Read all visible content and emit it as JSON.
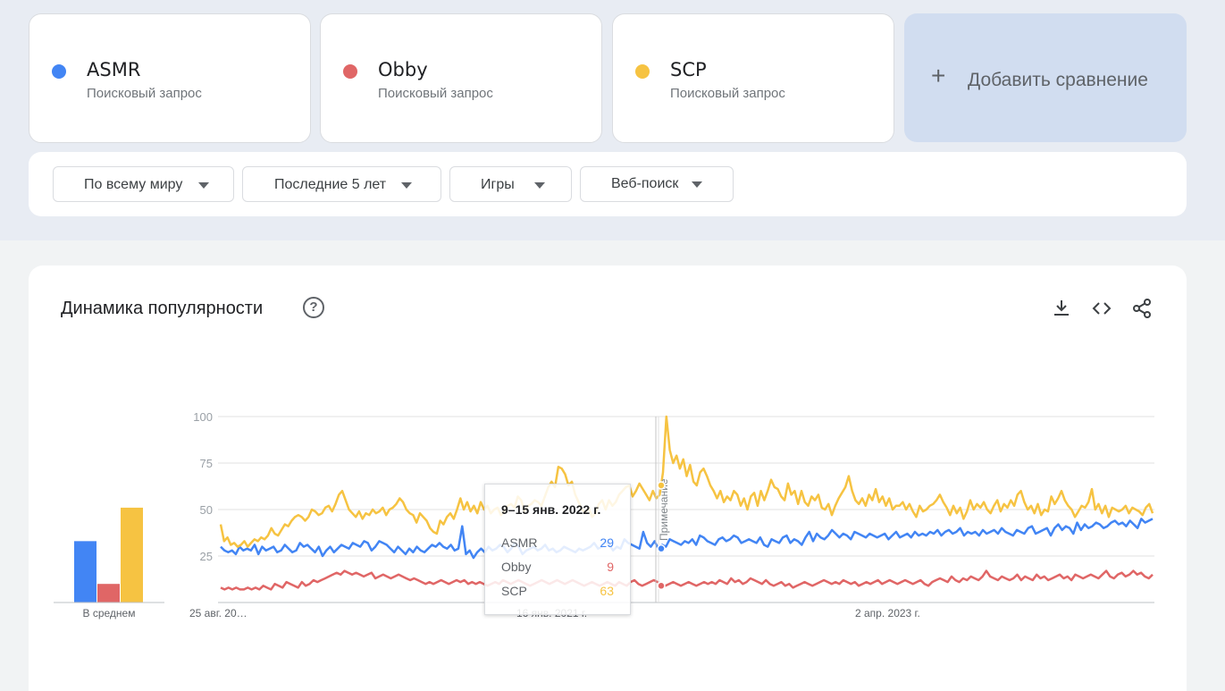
{
  "terms": [
    {
      "name": "ASMR",
      "subtitle": "Поисковый запрос",
      "color": "#4285f4"
    },
    {
      "name": "Obby",
      "subtitle": "Поисковый запрос",
      "color": "#e06666"
    },
    {
      "name": "SCP",
      "subtitle": "Поисковый запрос",
      "color": "#f6c342"
    }
  ],
  "add_compare": {
    "icon": "plus-icon",
    "label": "Добавить сравнение"
  },
  "filters": [
    {
      "label": "По всему миру",
      "icon": "caret-down-icon"
    },
    {
      "label": "Последние 5 лет",
      "icon": "caret-down-icon"
    },
    {
      "label": "Игры",
      "icon": "caret-down-icon"
    },
    {
      "label": "Веб-поиск",
      "icon": "caret-down-icon"
    }
  ],
  "panel": {
    "title": "Динамика популярности",
    "help_icon": "help-circle-icon",
    "help_glyph": "?",
    "actions": [
      "download-icon",
      "embed-code-icon",
      "share-icon"
    ]
  },
  "tooltip": {
    "title": "9–15 янв. 2022 г.",
    "rows": [
      {
        "name": "ASMR",
        "value": 29,
        "color": "#4285f4"
      },
      {
        "name": "Obby",
        "value": 9,
        "color": "#e06666"
      },
      {
        "name": "SCP",
        "value": 63,
        "color": "#f6c342"
      }
    ]
  },
  "chart_data": {
    "type": "line",
    "title": "",
    "ylim": [
      0,
      100
    ],
    "y_ticks": [
      25,
      50,
      75,
      100
    ],
    "x_tick_labels": [
      "25 авг. 20…",
      "16 янв. 2021 г.",
      "2 апр. 2023 г."
    ],
    "grid": true,
    "note_label": "Примечание",
    "series": [
      {
        "name": "ASMR",
        "color": "#4285f4",
        "values": [
          30,
          28,
          27,
          28,
          26,
          30,
          28,
          29,
          28,
          31,
          26,
          30,
          28,
          29,
          30,
          27,
          28,
          31,
          29,
          27,
          28,
          32,
          30,
          31,
          29,
          27,
          30,
          25,
          28,
          30,
          27,
          29,
          31,
          30,
          29,
          32,
          31,
          30,
          33,
          32,
          28,
          30,
          33,
          32,
          31,
          29,
          27,
          30,
          28,
          26,
          29,
          27,
          30,
          28,
          27,
          29,
          31,
          30,
          32,
          30,
          29,
          31,
          28,
          29,
          41,
          26,
          28,
          24,
          27,
          29,
          27,
          30,
          28,
          29,
          31,
          30,
          27,
          29,
          32,
          30,
          26,
          28,
          29,
          30,
          28,
          29,
          31,
          28,
          29,
          27,
          28,
          30,
          29,
          28,
          27,
          29,
          28,
          29,
          30,
          32,
          29,
          30,
          33,
          31,
          28,
          30,
          29,
          34,
          32,
          31,
          30,
          29,
          38,
          32,
          30,
          33,
          29,
          31,
          30,
          34,
          33,
          32,
          31,
          33,
          32,
          34,
          31,
          36,
          35,
          33,
          32,
          31,
          34,
          35,
          33,
          34,
          36,
          35,
          32,
          33,
          34,
          33,
          32,
          35,
          31,
          30,
          34,
          33,
          32,
          35,
          36,
          32,
          34,
          33,
          31,
          35,
          38,
          33,
          37,
          35,
          34,
          36,
          39,
          37,
          35,
          37,
          36,
          34,
          38,
          37,
          36,
          35,
          37,
          36,
          35,
          36,
          37,
          34,
          36,
          38,
          35,
          36,
          37,
          35,
          38,
          36,
          37,
          36,
          38,
          37,
          39,
          36,
          38,
          39,
          37,
          38,
          40,
          36,
          38,
          37,
          38,
          36,
          39,
          37,
          38,
          39,
          37,
          40,
          38,
          37,
          36,
          39,
          38,
          37,
          40,
          41,
          37,
          38,
          39,
          40,
          36,
          40,
          42,
          39,
          41,
          40,
          37,
          43,
          39,
          42,
          40,
          41,
          43,
          42,
          40,
          41,
          43,
          44,
          42,
          43,
          41,
          44,
          42,
          40,
          45,
          43,
          44,
          45
        ]
      },
      {
        "name": "Obby",
        "color": "#e06666",
        "values": [
          8,
          7,
          8,
          7,
          8,
          7,
          7,
          8,
          7,
          8,
          7,
          9,
          8,
          7,
          10,
          9,
          8,
          11,
          10,
          9,
          8,
          11,
          9,
          10,
          12,
          11,
          12,
          13,
          14,
          15,
          16,
          15,
          17,
          16,
          15,
          16,
          15,
          14,
          15,
          16,
          13,
          14,
          15,
          14,
          13,
          14,
          15,
          14,
          13,
          12,
          13,
          12,
          11,
          10,
          11,
          10,
          11,
          12,
          11,
          10,
          11,
          12,
          11,
          12,
          10,
          11,
          10,
          11,
          10,
          9,
          10,
          11,
          10,
          12,
          11,
          10,
          11,
          12,
          11,
          10,
          9,
          10,
          11,
          12,
          11,
          10,
          11,
          12,
          11,
          10,
          11,
          12,
          11,
          10,
          9,
          10,
          11,
          10,
          9,
          10,
          11,
          10,
          9,
          11,
          10,
          9,
          11,
          12,
          10,
          9,
          10,
          11,
          12,
          11,
          10,
          9,
          10,
          11,
          10,
          9,
          10,
          11,
          10,
          9,
          10,
          11,
          10,
          11,
          10,
          12,
          11,
          10,
          13,
          11,
          12,
          10,
          11,
          13,
          12,
          11,
          10,
          12,
          10,
          9,
          10,
          11,
          9,
          10,
          8,
          9,
          10,
          11,
          10,
          9,
          10,
          11,
          12,
          11,
          10,
          11,
          10,
          12,
          11,
          10,
          11,
          9,
          10,
          11,
          10,
          11,
          12,
          10,
          11,
          12,
          11,
          10,
          11,
          12,
          11,
          10,
          11,
          12,
          10,
          9,
          11,
          12,
          13,
          12,
          11,
          14,
          12,
          11,
          13,
          12,
          14,
          13,
          12,
          14,
          17,
          14,
          13,
          12,
          14,
          13,
          12,
          13,
          15,
          12,
          14,
          13,
          12,
          15,
          13,
          14,
          12,
          13,
          14,
          15,
          13,
          14,
          12,
          15,
          14,
          13,
          14,
          15,
          14,
          13,
          15,
          17,
          14,
          13,
          15,
          16,
          14,
          15,
          17,
          15,
          16,
          14,
          13,
          15
        ]
      },
      {
        "name": "SCP",
        "color": "#f6c342",
        "values": [
          42,
          33,
          35,
          31,
          32,
          30,
          31,
          33,
          30,
          32,
          34,
          33,
          35,
          34,
          36,
          40,
          37,
          36,
          39,
          42,
          41,
          44,
          46,
          47,
          46,
          44,
          46,
          50,
          49,
          47,
          48,
          51,
          52,
          49,
          53,
          58,
          60,
          55,
          50,
          48,
          46,
          49,
          45,
          48,
          47,
          50,
          48,
          49,
          51,
          47,
          50,
          51,
          53,
          56,
          54,
          50,
          48,
          47,
          43,
          48,
          46,
          44,
          40,
          38,
          37,
          44,
          42,
          46,
          48,
          45,
          50,
          56,
          50,
          54,
          49,
          52,
          48,
          54,
          50,
          52,
          48,
          50,
          51,
          47,
          49,
          52,
          53,
          51,
          57,
          55,
          49,
          52,
          53,
          55,
          54,
          52,
          57,
          62,
          65,
          62,
          73,
          72,
          69,
          63,
          65,
          58,
          54,
          50,
          48,
          51,
          46,
          48,
          53,
          55,
          50,
          55,
          52,
          54,
          58,
          60,
          62,
          63,
          57,
          60,
          64,
          61,
          58,
          55,
          60,
          56,
          58,
          70,
          100,
          82,
          75,
          79,
          72,
          77,
          68,
          74,
          65,
          63,
          70,
          72,
          68,
          63,
          60,
          56,
          60,
          54,
          57,
          55,
          60,
          58,
          52,
          56,
          50,
          57,
          59,
          52,
          60,
          55,
          60,
          66,
          62,
          61,
          57,
          55,
          64,
          58,
          60,
          53,
          60,
          54,
          52,
          57,
          55,
          58,
          51,
          50,
          53,
          47,
          52,
          56,
          59,
          62,
          68,
          60,
          55,
          53,
          56,
          52,
          58,
          55,
          61,
          54,
          57,
          52,
          56,
          50,
          52,
          52,
          54,
          50,
          53,
          49,
          46,
          52,
          49,
          50,
          52,
          53,
          55,
          58,
          54,
          51,
          47,
          52,
          48,
          51,
          45,
          49,
          55,
          50,
          53,
          51,
          54,
          50,
          48,
          52,
          55,
          49,
          53,
          51,
          55,
          52,
          58,
          60,
          54,
          50,
          52,
          48,
          53,
          47,
          50,
          49,
          57,
          53,
          56,
          60,
          55,
          52,
          50,
          46,
          49,
          52,
          51,
          54,
          61,
          50,
          53,
          48,
          52,
          46,
          51,
          50,
          49,
          50,
          52,
          48,
          51,
          50,
          49,
          47,
          51,
          53,
          48
        ]
      }
    ],
    "averages": {
      "label": "В среднем",
      "values": [
        {
          "name": "ASMR",
          "value": 33,
          "color": "#4285f4"
        },
        {
          "name": "Obby",
          "value": 10,
          "color": "#e06666"
        },
        {
          "name": "SCP",
          "value": 51,
          "color": "#f6c342"
        }
      ]
    }
  }
}
